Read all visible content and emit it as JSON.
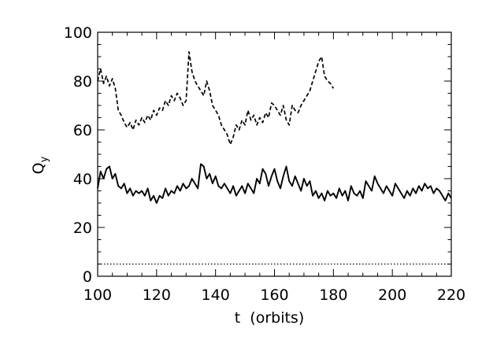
{
  "chart_data": {
    "type": "line",
    "xlabel": "t  (orbits)",
    "ylabel": "Q",
    "ylabel_sub": "y",
    "xlim": [
      100,
      220
    ],
    "ylim": [
      0,
      100
    ],
    "xticks": [
      100,
      120,
      140,
      160,
      180,
      200,
      220
    ],
    "yticks": [
      0,
      20,
      40,
      60,
      80,
      100
    ],
    "grid": false,
    "series": [
      {
        "style": "dashed",
        "x": [
          100,
          101,
          102,
          103,
          104,
          105,
          106,
          107,
          108,
          109,
          110,
          111,
          112,
          113,
          114,
          115,
          116,
          117,
          118,
          119,
          120,
          121,
          122,
          123,
          124,
          125,
          126,
          127,
          128,
          129,
          130,
          131,
          132,
          133,
          134,
          135,
          136,
          137,
          138,
          139,
          140,
          141,
          142,
          143,
          144,
          145,
          146,
          147,
          148,
          149,
          150,
          151,
          152,
          153,
          154,
          155,
          156,
          157,
          158,
          159,
          160,
          161,
          162,
          163,
          164,
          165,
          166,
          167,
          168,
          169,
          170,
          171,
          172,
          173,
          174,
          175,
          176,
          177,
          178,
          179,
          180
        ],
        "y": [
          80,
          85,
          79,
          82,
          78,
          81,
          77,
          68,
          66,
          63,
          61,
          63,
          60,
          64,
          62,
          65,
          63,
          66,
          64,
          68,
          66,
          69,
          68,
          72,
          70,
          74,
          72,
          75,
          73,
          70,
          72,
          92,
          84,
          80,
          78,
          76,
          74,
          80,
          76,
          70,
          68,
          66,
          62,
          60,
          58,
          54,
          57,
          62,
          60,
          64,
          62,
          68,
          64,
          66,
          62,
          65,
          63,
          67,
          65,
          71,
          70,
          68,
          66,
          70,
          64,
          62,
          70,
          68,
          67,
          70,
          72,
          74,
          76,
          80,
          84,
          88,
          90,
          82,
          80,
          79,
          77
        ]
      },
      {
        "style": "solid",
        "x": [
          100,
          101,
          102,
          103,
          104,
          105,
          106,
          107,
          108,
          109,
          110,
          111,
          112,
          113,
          114,
          115,
          116,
          117,
          118,
          119,
          120,
          121,
          122,
          123,
          124,
          125,
          126,
          127,
          128,
          129,
          130,
          131,
          132,
          133,
          134,
          135,
          136,
          137,
          138,
          139,
          140,
          141,
          142,
          143,
          144,
          145,
          146,
          147,
          148,
          149,
          150,
          151,
          152,
          153,
          154,
          155,
          156,
          157,
          158,
          159,
          160,
          161,
          162,
          163,
          164,
          165,
          166,
          167,
          168,
          169,
          170,
          171,
          172,
          173,
          174,
          175,
          176,
          177,
          178,
          179,
          180,
          181,
          182,
          183,
          184,
          185,
          186,
          187,
          188,
          189,
          190,
          191,
          192,
          193,
          194,
          195,
          196,
          197,
          198,
          199,
          200,
          201,
          202,
          203,
          204,
          205,
          206,
          207,
          208,
          209,
          210,
          211,
          212,
          213,
          214,
          215,
          216,
          217,
          218,
          219,
          220
        ],
        "y": [
          36,
          43,
          40,
          44,
          45,
          40,
          42,
          37,
          36,
          38,
          34,
          36,
          33,
          35,
          34,
          35,
          33,
          36,
          31,
          33,
          30,
          33,
          32,
          36,
          33,
          35,
          34,
          37,
          35,
          38,
          36,
          37,
          40,
          38,
          36,
          46,
          45,
          40,
          42,
          38,
          41,
          37,
          36,
          38,
          36,
          34,
          37,
          33,
          35,
          37,
          34,
          38,
          36,
          34,
          40,
          38,
          44,
          42,
          37,
          41,
          44,
          39,
          36,
          41,
          45,
          39,
          37,
          41,
          38,
          35,
          40,
          37,
          39,
          33,
          35,
          32,
          34,
          31,
          35,
          33,
          34,
          32,
          36,
          33,
          35,
          31,
          37,
          34,
          33,
          35,
          32,
          39,
          37,
          35,
          41,
          38,
          36,
          34,
          37,
          35,
          33,
          38,
          36,
          34,
          32,
          35,
          33,
          36,
          34,
          37,
          35,
          38,
          36,
          37,
          34,
          36,
          35,
          33,
          31,
          34,
          32
        ]
      },
      {
        "style": "dotted",
        "x": [
          100,
          220
        ],
        "y": [
          5,
          5
        ]
      }
    ]
  }
}
